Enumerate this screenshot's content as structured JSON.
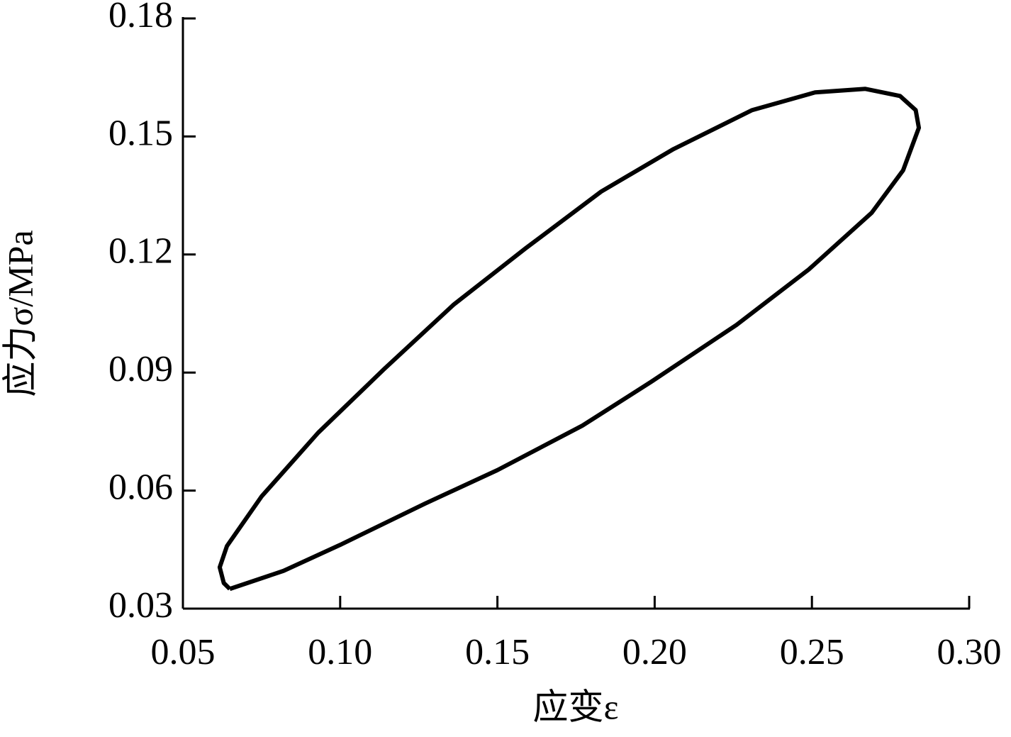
{
  "chart_data": {
    "type": "line",
    "xlabel": "应变ε",
    "ylabel": "应力σ/MPa",
    "xlim": [
      0.05,
      0.3
    ],
    "xticks": [
      0.05,
      {
        "value": 0.1,
        "label": "0.10"
      },
      0.15,
      {
        "value": 0.2,
        "label": "0.20"
      },
      0.25,
      {
        "value": 0.3,
        "label": "0.30"
      }
    ],
    "ylim": [
      0.03,
      0.18
    ],
    "yticks": [
      0.03,
      0.06,
      0.09,
      0.12,
      0.15,
      0.18
    ],
    "grid": false,
    "series": [
      {
        "color": "#000000",
        "x": [
          0.0649,
          0.082,
          0.1,
          0.127,
          0.15,
          0.177,
          0.199,
          0.226,
          0.249,
          0.269,
          0.279,
          0.284,
          0.283,
          0.278,
          0.267,
          0.251,
          0.231,
          0.206,
          0.183,
          0.159,
          0.136,
          0.114,
          0.093,
          0.075,
          0.064,
          0.0617,
          0.063,
          0.0649
        ],
        "values": [
          0.035,
          0.0396,
          0.0462,
          0.0567,
          0.0652,
          0.0765,
          0.0877,
          0.1021,
          0.1162,
          0.1306,
          0.1414,
          0.1522,
          0.1567,
          0.1603,
          0.1621,
          0.1612,
          0.1567,
          0.1468,
          0.136,
          0.1216,
          0.1072,
          0.0909,
          0.0747,
          0.0585,
          0.0459,
          0.0405,
          0.0365,
          0.035
        ]
      }
    ]
  }
}
